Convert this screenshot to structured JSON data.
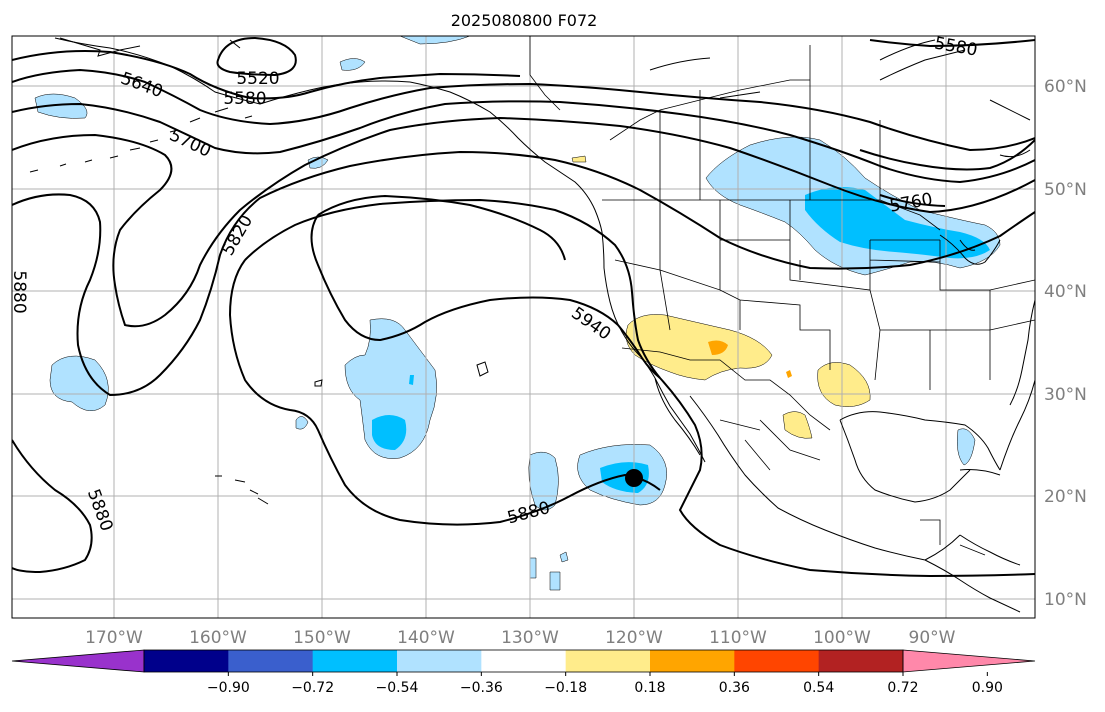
{
  "title": "2025080800 F072",
  "lon_labels": [
    "170°W",
    "160°W",
    "150°W",
    "140°W",
    "130°W",
    "120°W",
    "110°W",
    "100°W",
    "90°W"
  ],
  "lat_labels": [
    "60°N",
    "50°N",
    "40°N",
    "30°N",
    "20°N",
    "10°N"
  ],
  "contour_labels": [
    "5520",
    "5580",
    "5640",
    "5700",
    "5760",
    "5820",
    "5880",
    "5940",
    "5880",
    "5880",
    "5580",
    "5880"
  ],
  "colorbar": {
    "ticks": [
      "−0.90",
      "−0.72",
      "−0.54",
      "−0.36",
      "−0.18",
      "0.18",
      "0.36",
      "0.54",
      "0.72",
      "0.90"
    ],
    "colors": [
      "#9932cc",
      "#00008b",
      "#3a5fcd",
      "#00bfff",
      "#b0e2ff",
      "#ffffff",
      "#ffec8b",
      "#ffa500",
      "#ff4500",
      "#b22222",
      "#ff88aa"
    ]
  },
  "shading_colors": {
    "light_blue": "#b0e2ff",
    "blue": "#00bfff",
    "light_yellow": "#ffec8b",
    "orange": "#ffa500"
  },
  "marker": {
    "label": "storm-center",
    "lon": -119,
    "lat": 22
  }
}
